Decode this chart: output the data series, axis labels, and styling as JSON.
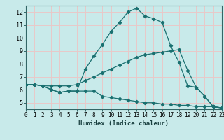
{
  "xlabel": "Humidex (Indice chaleur)",
  "bg_color": "#c8eaea",
  "grid_color": "#e8c8c8",
  "line_color": "#1a7070",
  "x": [
    0,
    1,
    2,
    3,
    4,
    5,
    6,
    7,
    8,
    9,
    10,
    11,
    12,
    13,
    14,
    15,
    16,
    17,
    18,
    19,
    20,
    21,
    22,
    23
  ],
  "line1": [
    6.4,
    6.4,
    6.3,
    6.0,
    5.8,
    5.9,
    5.9,
    7.6,
    8.6,
    9.5,
    10.5,
    11.2,
    12.0,
    12.3,
    11.7,
    11.5,
    11.2,
    9.4,
    8.1,
    6.3,
    6.2,
    5.5,
    4.7,
    4.6
  ],
  "line2": [
    6.4,
    6.4,
    6.3,
    6.3,
    6.3,
    6.3,
    6.4,
    6.7,
    7.0,
    7.3,
    7.6,
    7.9,
    8.2,
    8.5,
    8.7,
    8.8,
    8.9,
    9.0,
    9.1,
    7.5,
    6.2,
    5.5,
    4.7,
    4.6
  ],
  "line3": [
    6.4,
    6.4,
    6.3,
    6.0,
    5.8,
    5.9,
    5.9,
    5.9,
    5.9,
    5.5,
    5.4,
    5.3,
    5.2,
    5.1,
    5.0,
    5.0,
    4.9,
    4.9,
    4.8,
    4.8,
    4.7,
    4.7,
    4.7,
    4.6
  ],
  "xlim": [
    0,
    23
  ],
  "ylim": [
    4.5,
    12.5
  ],
  "yticks": [
    5,
    6,
    7,
    8,
    9,
    10,
    11,
    12
  ],
  "xticks": [
    0,
    1,
    2,
    3,
    4,
    5,
    6,
    7,
    8,
    9,
    10,
    11,
    12,
    13,
    14,
    15,
    16,
    17,
    18,
    19,
    20,
    21,
    22,
    23
  ]
}
